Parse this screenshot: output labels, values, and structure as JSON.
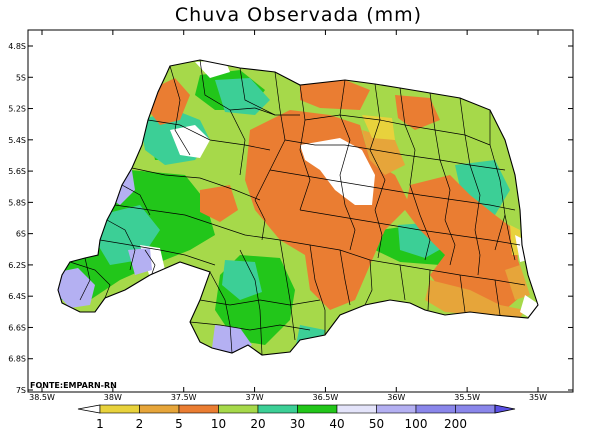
{
  "title": "Chuva Observada (mm)",
  "source": "FONTE:EMPARN-RN",
  "latitude_ticks": [
    "4.8S",
    "5S",
    "5.2S",
    "5.4S",
    "5.6S",
    "5.8S",
    "6S",
    "6.2S",
    "6.4S",
    "6.6S",
    "6.8S",
    "7S"
  ],
  "longitude_ticks": [
    "38.5W",
    "38W",
    "37.5W",
    "37W",
    "36.5W",
    "36W",
    "35.5W",
    "35W"
  ],
  "colorbar": {
    "labels": [
      "1",
      "2",
      "5",
      "10",
      "20",
      "30",
      "40",
      "50",
      "100",
      "200"
    ],
    "colors": [
      "#ffffff",
      "#e8d23c",
      "#e6a53a",
      "#ea7d32",
      "#a6d94a",
      "#3ccf96",
      "#22c61a",
      "#e4e4fa",
      "#b4b0f2",
      "#8a86ea",
      "#5a50e4"
    ]
  },
  "palette": {
    "orange": "#ea7d32",
    "gold": "#e6a53a",
    "yellow": "#e8d23c",
    "lightgreen": "#a6d94a",
    "teal": "#3ccf96",
    "green": "#22c61a",
    "lavender": "#b4b0f2",
    "white": "#ffffff"
  }
}
